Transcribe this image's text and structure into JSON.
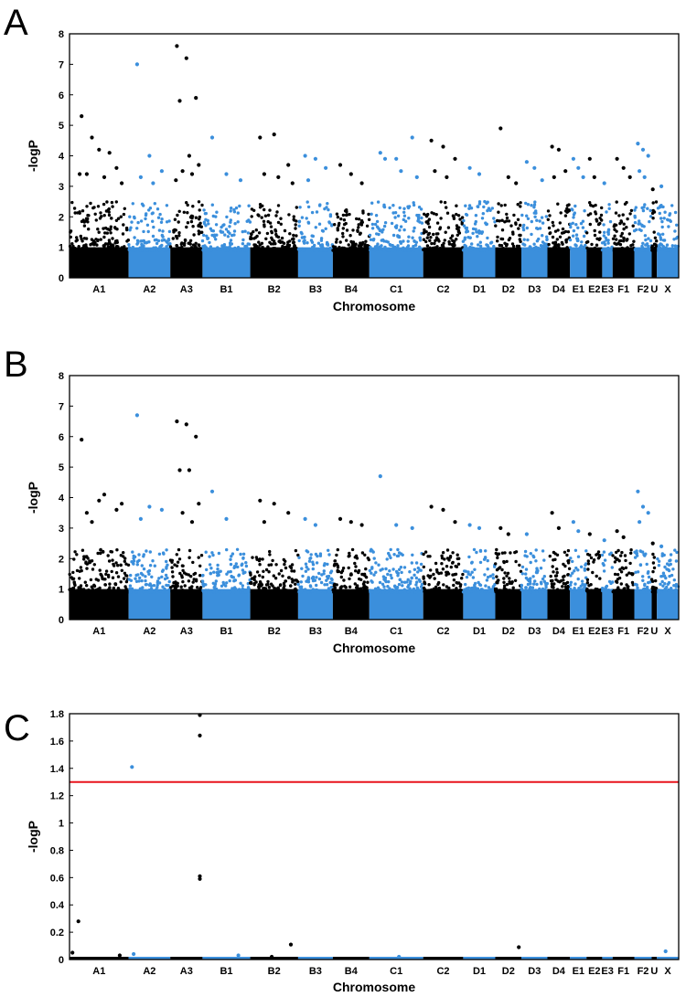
{
  "figure": {
    "colors": {
      "dark": "#000000",
      "blue": "#3b8fdc",
      "threshold": "#e8141c"
    }
  },
  "chart_data": [
    {
      "type": "scatter",
      "panel": "A",
      "xlabel": "Chromosome",
      "ylabel": "-logP",
      "ylim": [
        0,
        8
      ],
      "yticks": [
        "0",
        "1",
        "2",
        "3",
        "4",
        "5",
        "6",
        "7",
        "8"
      ],
      "chromosomes": [
        "A1",
        "A2",
        "A3",
        "B1",
        "B2",
        "B3",
        "B4",
        "C1",
        "C2",
        "D1",
        "D2",
        "D3",
        "D4",
        "E1",
        "E2",
        "E3",
        "F1",
        "F2",
        "U",
        "X"
      ],
      "baseline_max": 2.2,
      "peaks": [
        {
          "chrom": "A1",
          "values": [
            5.3,
            4.2,
            3.6,
            3.4,
            3.3,
            3.1,
            4.6,
            4.1,
            3.4
          ]
        },
        {
          "chrom": "A2",
          "values": [
            7.0,
            4.0,
            3.5,
            3.3,
            3.1
          ]
        },
        {
          "chrom": "A3",
          "values": [
            7.6,
            7.2,
            5.9,
            5.8,
            4.0,
            3.7,
            3.5,
            3.4,
            3.2
          ]
        },
        {
          "chrom": "B1",
          "values": [
            4.6,
            3.4,
            3.2
          ]
        },
        {
          "chrom": "B2",
          "values": [
            4.6,
            4.7,
            3.7,
            3.4,
            3.3,
            3.1
          ]
        },
        {
          "chrom": "B3",
          "values": [
            4.0,
            3.9,
            3.6,
            3.2
          ]
        },
        {
          "chrom": "B4",
          "values": [
            3.7,
            3.4,
            3.1
          ]
        },
        {
          "chrom": "C1",
          "values": [
            4.1,
            3.9,
            4.6,
            3.9,
            3.5,
            3.3
          ]
        },
        {
          "chrom": "C2",
          "values": [
            4.5,
            4.3,
            3.9,
            3.5,
            3.3
          ]
        },
        {
          "chrom": "D1",
          "values": [
            3.6,
            3.4
          ]
        },
        {
          "chrom": "D2",
          "values": [
            4.9,
            3.3,
            3.1
          ]
        },
        {
          "chrom": "D3",
          "values": [
            3.8,
            3.6,
            3.2
          ]
        },
        {
          "chrom": "D4",
          "values": [
            4.3,
            4.2,
            3.5,
            3.3
          ]
        },
        {
          "chrom": "E1",
          "values": [
            3.9,
            3.6,
            3.3
          ]
        },
        {
          "chrom": "E2",
          "values": [
            3.9,
            3.3
          ]
        },
        {
          "chrom": "E3",
          "values": [
            3.1
          ]
        },
        {
          "chrom": "F1",
          "values": [
            3.9,
            3.6,
            3.3
          ]
        },
        {
          "chrom": "F2",
          "values": [
            4.4,
            4.2,
            4.0,
            3.5,
            3.3
          ]
        },
        {
          "chrom": "U",
          "values": [
            2.9
          ]
        },
        {
          "chrom": "X",
          "values": [
            3.0
          ]
        }
      ]
    },
    {
      "type": "scatter",
      "panel": "B",
      "xlabel": "Chromosome",
      "ylabel": "-logP",
      "ylim": [
        0,
        8
      ],
      "yticks": [
        "0",
        "1",
        "2",
        "3",
        "4",
        "5",
        "6",
        "7",
        "8"
      ],
      "chromosomes": [
        "A1",
        "A2",
        "A3",
        "B1",
        "B2",
        "B3",
        "B4",
        "C1",
        "C2",
        "D1",
        "D2",
        "D3",
        "D4",
        "E1",
        "E2",
        "E3",
        "F1",
        "F2",
        "U",
        "X"
      ],
      "baseline_max": 2.0,
      "peaks": [
        {
          "chrom": "A1",
          "values": [
            5.9,
            3.9,
            3.6,
            3.5,
            4.1,
            3.8,
            3.2
          ]
        },
        {
          "chrom": "A2",
          "values": [
            6.7,
            3.7,
            3.6,
            3.3
          ]
        },
        {
          "chrom": "A3",
          "values": [
            6.5,
            6.4,
            6.0,
            4.9,
            4.9,
            3.8,
            3.5,
            3.2
          ]
        },
        {
          "chrom": "B1",
          "values": [
            4.2,
            3.3
          ]
        },
        {
          "chrom": "B2",
          "values": [
            3.9,
            3.8,
            3.5,
            3.2
          ]
        },
        {
          "chrom": "B3",
          "values": [
            3.3,
            3.1
          ]
        },
        {
          "chrom": "B4",
          "values": [
            3.3,
            3.2,
            3.1
          ]
        },
        {
          "chrom": "C1",
          "values": [
            4.7,
            3.1,
            3.0
          ]
        },
        {
          "chrom": "C2",
          "values": [
            3.7,
            3.6,
            3.2
          ]
        },
        {
          "chrom": "D1",
          "values": [
            3.1,
            3.0
          ]
        },
        {
          "chrom": "D2",
          "values": [
            3.0,
            2.8
          ]
        },
        {
          "chrom": "D3",
          "values": [
            2.8
          ]
        },
        {
          "chrom": "D4",
          "values": [
            3.5,
            3.0
          ]
        },
        {
          "chrom": "E1",
          "values": [
            3.2,
            2.9
          ]
        },
        {
          "chrom": "E2",
          "values": [
            2.8
          ]
        },
        {
          "chrom": "E3",
          "values": [
            2.6
          ]
        },
        {
          "chrom": "F1",
          "values": [
            2.9,
            2.7
          ]
        },
        {
          "chrom": "F2",
          "values": [
            4.2,
            3.7,
            3.5,
            3.2
          ]
        },
        {
          "chrom": "U",
          "values": [
            2.5
          ]
        },
        {
          "chrom": "X",
          "values": [
            2.4
          ]
        }
      ]
    },
    {
      "type": "scatter",
      "panel": "C",
      "xlabel": "Chromosome",
      "ylabel": "-logP",
      "ylim": [
        0,
        1.8
      ],
      "yticks": [
        "0",
        "0.2",
        "0.4",
        "0.6",
        "0.8",
        "1",
        "1.2",
        "1.4",
        "1.6",
        "1.8"
      ],
      "chromosomes": [
        "A1",
        "A2",
        "A3",
        "B1",
        "B2",
        "B3",
        "B4",
        "C1",
        "C2",
        "D1",
        "D2",
        "D3",
        "D4",
        "E1",
        "E2",
        "E3",
        "F1",
        "F2",
        "U",
        "X"
      ],
      "threshold": 1.3,
      "points": [
        {
          "chrom": "A1",
          "pos": 0.05,
          "value": 0.05
        },
        {
          "chrom": "A1",
          "pos": 0.15,
          "value": 0.28
        },
        {
          "chrom": "A1",
          "pos": 0.85,
          "value": 0.03
        },
        {
          "chrom": "A2",
          "pos": 0.08,
          "value": 1.41
        },
        {
          "chrom": "A2",
          "pos": 0.12,
          "value": 0.04
        },
        {
          "chrom": "A3",
          "pos": 0.92,
          "value": 1.79
        },
        {
          "chrom": "A3",
          "pos": 0.92,
          "value": 1.64
        },
        {
          "chrom": "A3",
          "pos": 0.92,
          "value": 0.61
        },
        {
          "chrom": "A3",
          "pos": 0.92,
          "value": 0.59
        },
        {
          "chrom": "B1",
          "pos": 0.75,
          "value": 0.03
        },
        {
          "chrom": "B2",
          "pos": 0.45,
          "value": 0.02
        },
        {
          "chrom": "B2",
          "pos": 0.85,
          "value": 0.11
        },
        {
          "chrom": "C1",
          "pos": 0.55,
          "value": 0.02
        },
        {
          "chrom": "D2",
          "pos": 0.9,
          "value": 0.09
        },
        {
          "chrom": "X",
          "pos": 0.4,
          "value": 0.06
        }
      ]
    }
  ]
}
